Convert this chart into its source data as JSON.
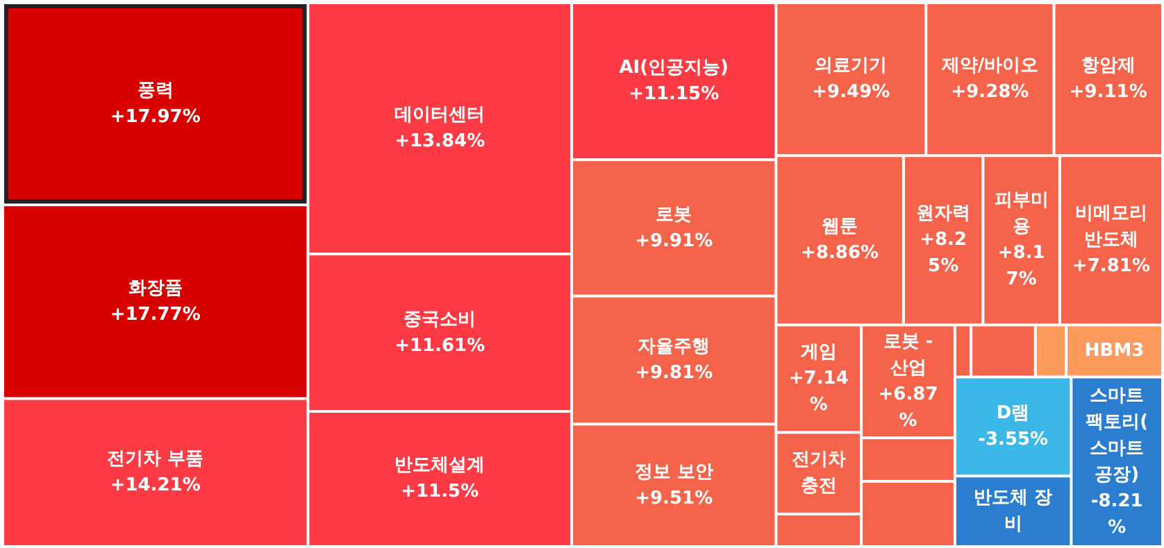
{
  "chart_data": {
    "type": "other",
    "categories": [
      "풍력",
      "화장품",
      "전기차 부품",
      "데이터센터",
      "중국소비",
      "반도체설계",
      "AI(인공지능)",
      "로봇",
      "자율주행",
      "정보 보안",
      "의료기기",
      "제약/바이오",
      "항암제",
      "웹툰",
      "원자력",
      "피부미용",
      "비메모리 반도체",
      "게임",
      "전기차 충전",
      null,
      "로봇 - 산업",
      null,
      null,
      null,
      null,
      null,
      "HBM3",
      "D램",
      "반도체 장비",
      "스마트팩토리(스마트공장)"
    ],
    "values": [
      17.97,
      17.77,
      14.21,
      13.84,
      11.61,
      11.5,
      11.15,
      9.91,
      9.81,
      9.51,
      9.49,
      9.28,
      9.11,
      8.86,
      8.25,
      8.17,
      7.81,
      7.14,
      null,
      null,
      6.87,
      null,
      null,
      null,
      null,
      null,
      null,
      -3.55,
      null,
      -8.21
    ],
    "value_labels": [
      "+17.97%",
      "+17.77%",
      "+14.21%",
      "+13.84%",
      "+11.61%",
      "+11.5%",
      "+11.15%",
      "+9.91%",
      "+9.81%",
      "+9.51%",
      "+9.49%",
      "+9.28%",
      "+9.11%",
      "+8.86%",
      "+8.25%",
      "+8.17%",
      "+7.81%",
      "+7.14%",
      null,
      null,
      "+6.87%",
      null,
      null,
      null,
      null,
      null,
      null,
      "-3.55%",
      null,
      "-8.21%"
    ],
    "colors": [
      "#d90000",
      "#d90000",
      "#fe3a45",
      "#fe3a45",
      "#fe3a45",
      "#fe3a45",
      "#fe3a45",
      "#f5634b",
      "#f5634b",
      "#f5634b",
      "#f5634b",
      "#f5634b",
      "#f5634b",
      "#f5634b",
      "#f5634b",
      "#f5634b",
      "#f5634b",
      "#f5634b",
      "#f5634b",
      "#f5634b",
      "#f5634b",
      "#f5634b",
      "#f5634b",
      "#f5634b",
      "#f5634b",
      "#fd9a5c",
      "#fd9a5c",
      "#3bb8e8",
      "#2a7dcf",
      "#2a7dcf"
    ]
  }
}
